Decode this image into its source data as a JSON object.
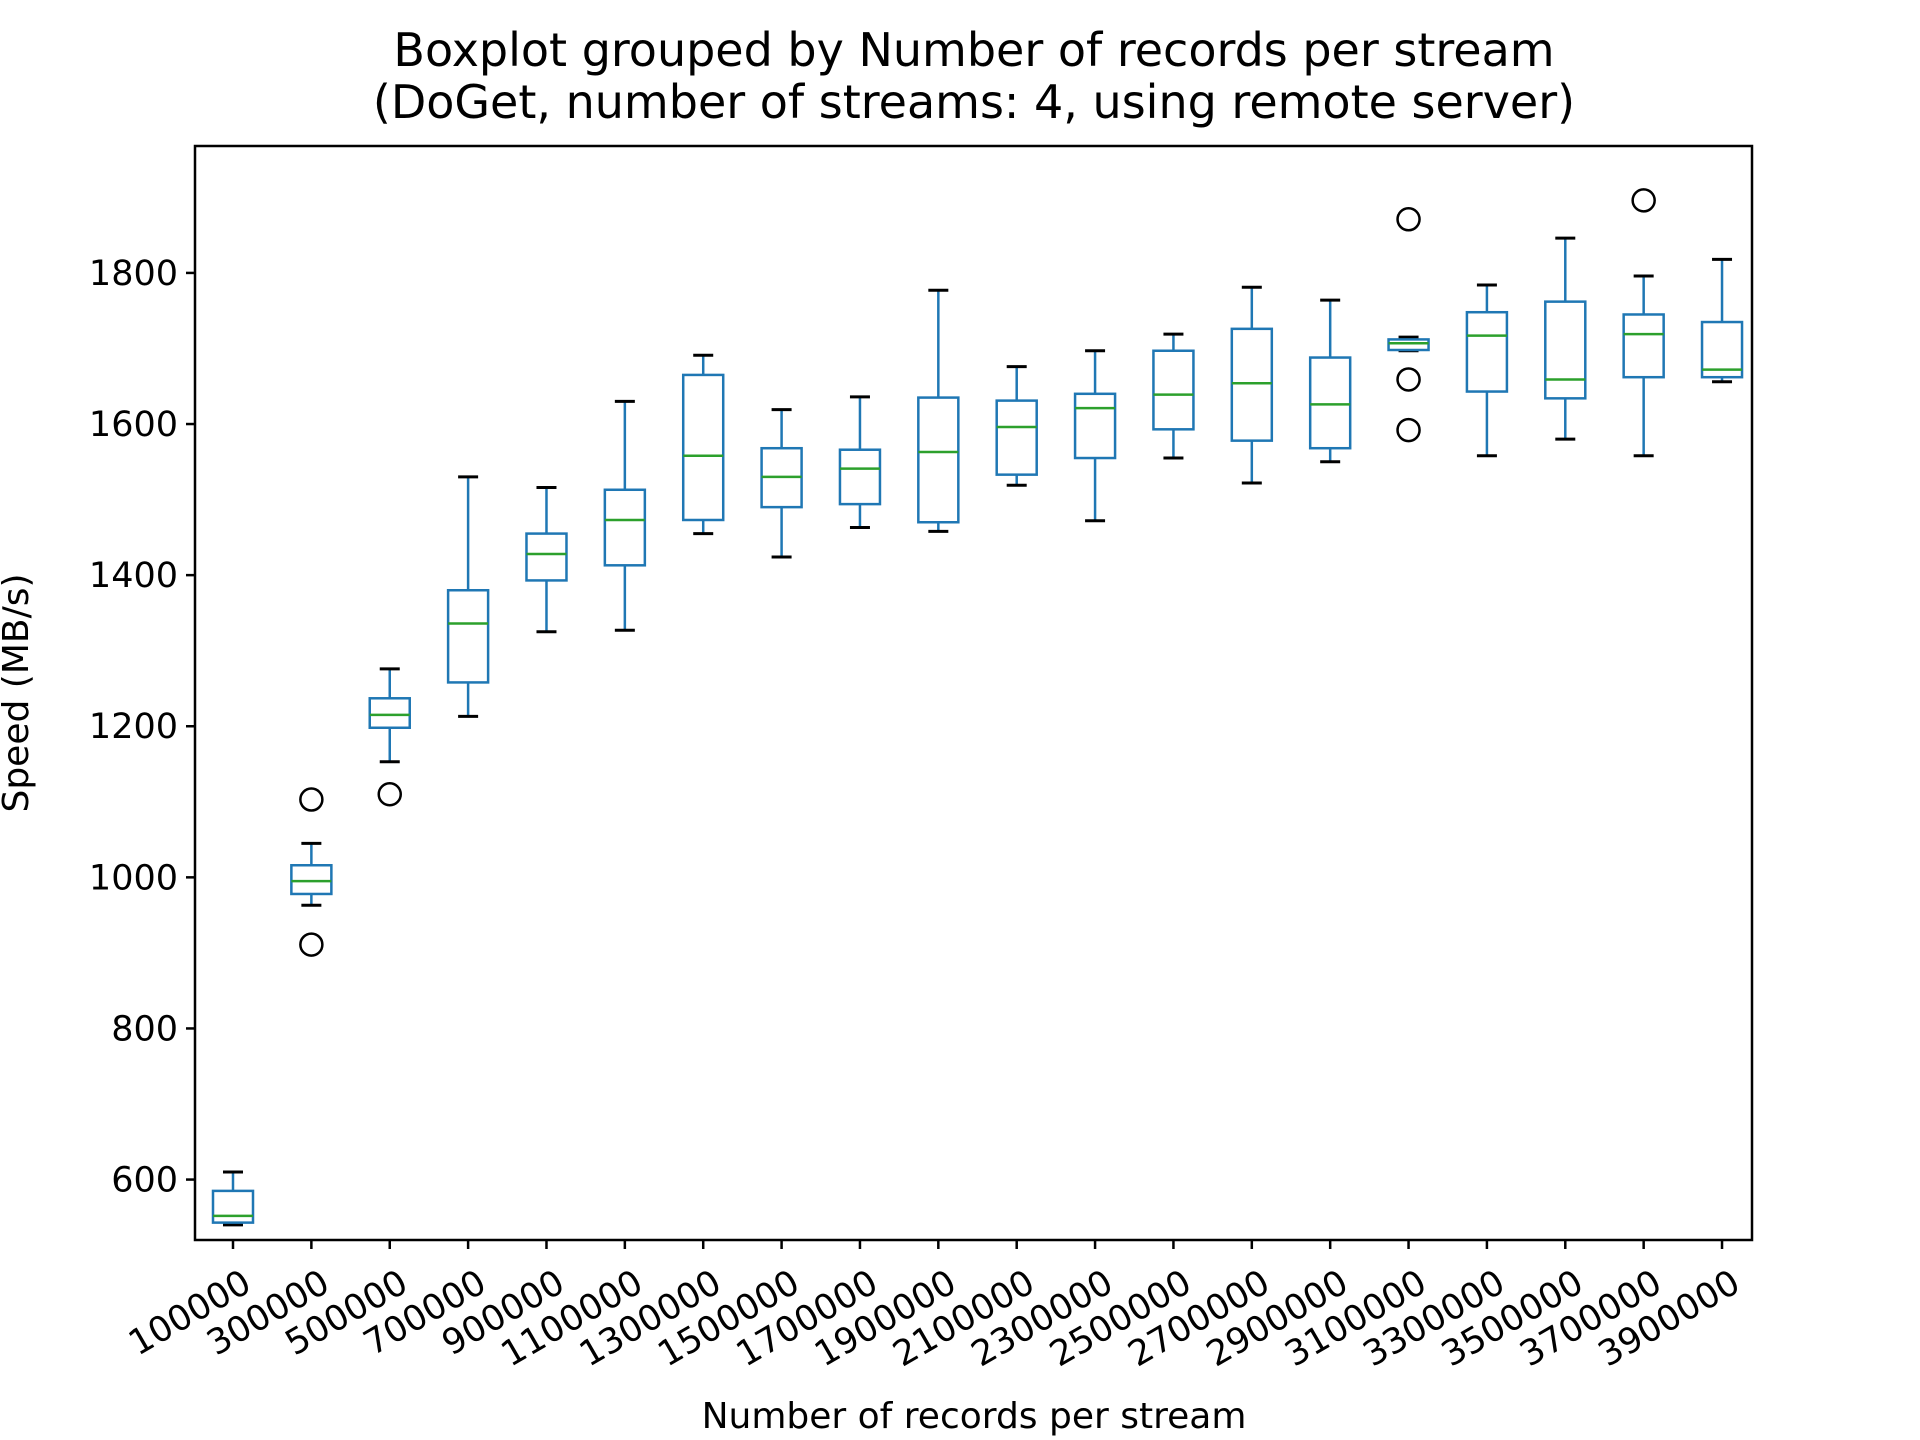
{
  "chart_data": {
    "type": "boxplot",
    "title": "Boxplot grouped by Number of records per stream",
    "subtitle": "(DoGet, number of streams: 4, using remote server)",
    "xlabel": "Number of records per stream",
    "ylabel": "Speed (MB/s)",
    "ylim": [
      520,
      1968
    ],
    "yticks": [
      600,
      800,
      1000,
      1200,
      1400,
      1600,
      1800
    ],
    "grid": false,
    "legend": "none",
    "colors": {
      "box": "#1f77b4",
      "median": "#2ca02c",
      "whisker_cap": "#000000",
      "flier": "#000000"
    },
    "categories": [
      "100000",
      "300000",
      "500000",
      "700000",
      "900000",
      "1100000",
      "1300000",
      "1500000",
      "1700000",
      "1900000",
      "2100000",
      "2300000",
      "2500000",
      "2700000",
      "2900000",
      "3100000",
      "3300000",
      "3500000",
      "3700000",
      "3900000"
    ],
    "boxes": [
      {
        "whislo": 540,
        "q1": 543,
        "med": 552,
        "q3": 585,
        "whishi": 610,
        "fliers": []
      },
      {
        "whislo": 963,
        "q1": 978,
        "med": 995,
        "q3": 1016,
        "whishi": 1045,
        "fliers": [
          1103,
          911
        ]
      },
      {
        "whislo": 1153,
        "q1": 1198,
        "med": 1215,
        "q3": 1237,
        "whishi": 1276,
        "fliers": [
          1110
        ]
      },
      {
        "whislo": 1213,
        "q1": 1258,
        "med": 1336,
        "q3": 1380,
        "whishi": 1530,
        "fliers": []
      },
      {
        "whislo": 1325,
        "q1": 1393,
        "med": 1428,
        "q3": 1455,
        "whishi": 1516,
        "fliers": []
      },
      {
        "whislo": 1327,
        "q1": 1413,
        "med": 1473,
        "q3": 1513,
        "whishi": 1630,
        "fliers": []
      },
      {
        "whislo": 1455,
        "q1": 1473,
        "med": 1558,
        "q3": 1665,
        "whishi": 1691,
        "fliers": []
      },
      {
        "whislo": 1424,
        "q1": 1490,
        "med": 1530,
        "q3": 1568,
        "whishi": 1619,
        "fliers": []
      },
      {
        "whislo": 1463,
        "q1": 1494,
        "med": 1541,
        "q3": 1566,
        "whishi": 1636,
        "fliers": []
      },
      {
        "whislo": 1458,
        "q1": 1470,
        "med": 1563,
        "q3": 1635,
        "whishi": 1777,
        "fliers": []
      },
      {
        "whislo": 1519,
        "q1": 1533,
        "med": 1596,
        "q3": 1631,
        "whishi": 1676,
        "fliers": []
      },
      {
        "whislo": 1472,
        "q1": 1555,
        "med": 1621,
        "q3": 1640,
        "whishi": 1697,
        "fliers": []
      },
      {
        "whislo": 1555,
        "q1": 1593,
        "med": 1639,
        "q3": 1697,
        "whishi": 1719,
        "fliers": []
      },
      {
        "whislo": 1522,
        "q1": 1578,
        "med": 1654,
        "q3": 1726,
        "whishi": 1781,
        "fliers": []
      },
      {
        "whislo": 1550,
        "q1": 1568,
        "med": 1626,
        "q3": 1688,
        "whishi": 1764,
        "fliers": []
      },
      {
        "whislo": 1697,
        "q1": 1698,
        "med": 1707,
        "q3": 1712,
        "whishi": 1715,
        "fliers": [
          1871,
          1659,
          1592
        ]
      },
      {
        "whislo": 1558,
        "q1": 1643,
        "med": 1717,
        "q3": 1748,
        "whishi": 1784,
        "fliers": []
      },
      {
        "whislo": 1580,
        "q1": 1634,
        "med": 1659,
        "q3": 1762,
        "whishi": 1846,
        "fliers": []
      },
      {
        "whislo": 1558,
        "q1": 1662,
        "med": 1719,
        "q3": 1745,
        "whishi": 1796,
        "fliers": [
          1896
        ]
      },
      {
        "whislo": 1656,
        "q1": 1662,
        "med": 1672,
        "q3": 1735,
        "whishi": 1818,
        "fliers": []
      }
    ]
  }
}
